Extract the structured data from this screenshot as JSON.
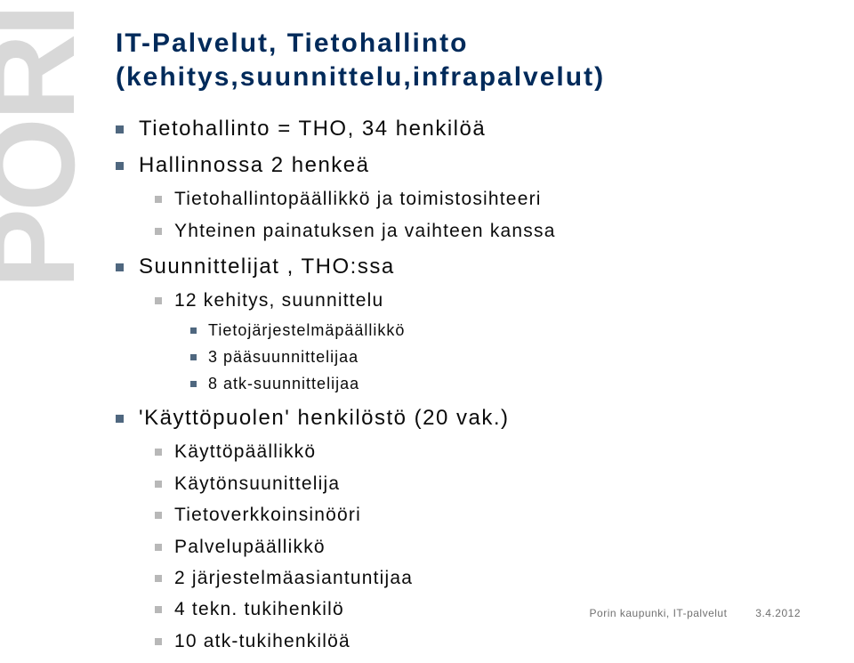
{
  "watermark": "PORI",
  "title_line1": "IT-Palvelut, Tietohallinto",
  "title_line2": "(kehitys,suunnittelu,infrapalvelut)",
  "bullets": {
    "l1_0": "Tietohallinto = THO, 34 henkilöä",
    "l1_1": "Hallinnossa 2 henkeä",
    "l2_0": "Tietohallintopäällikkö ja toimistosihteeri",
    "l2_1": "Yhteinen painatuksen ja vaihteen kanssa",
    "l1_2": "Suunnittelijat , THO:ssa",
    "l2_2": "12 kehitys, suunnittelu",
    "l3_0": "Tietojärjestelmäpäällikkö",
    "l3_1": "3 pääsuunnittelijaa",
    "l3_2": "8 atk-suunnittelijaa",
    "l1_3": "'Käyttöpuolen' henkilöstö (20 vak.)",
    "l2_3": "Käyttöpäällikkö",
    "l2_4": "Käytönsuunittelija",
    "l2_5": "Tietoverkkoinsinööri",
    "l2_6": "Palvelupäällikkö",
    "l2_7": "2 järjestelmäasiantuntijaa",
    "l2_8": "4 tekn. tukihenkilö",
    "l2_9": "10 atk-tukihenkilöä"
  },
  "footer": {
    "org": "Porin kaupunki, IT-palvelut",
    "date": "3.4.2012"
  },
  "colors": {
    "title": "#002a5a",
    "bullet_dark": "#4f677f",
    "bullet_light": "#b8b8b8",
    "watermark": "#d8d8d8",
    "footer_text": "#707070",
    "background": "#ffffff"
  }
}
